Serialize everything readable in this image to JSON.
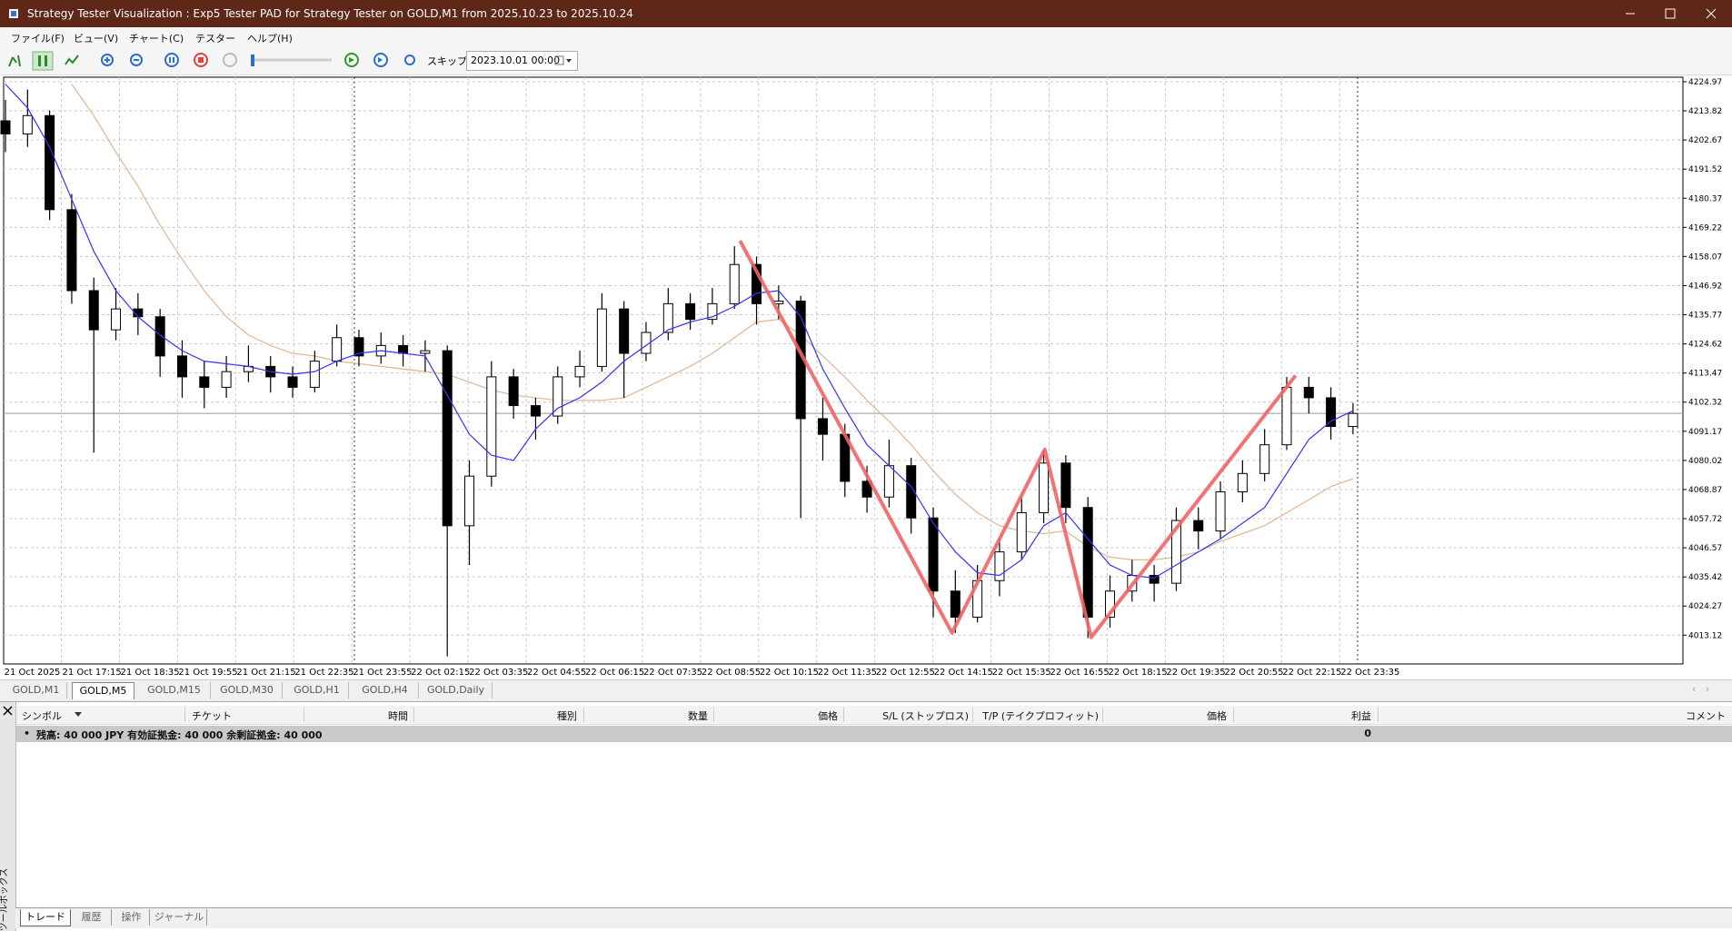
{
  "window_title": "Strategy Tester Visualization : Exp5 Tester PAD for Strategy Tester on GOLD,M1 from 2025.10.23 to 2025.10.24",
  "menu": [
    "ファイル(F)",
    "ビュー(V)",
    "チャート(C)",
    "テスター",
    "ヘルプ(H)"
  ],
  "toolbar": {
    "skip_label": "スキップ",
    "date": "2023.10.01 00:00"
  },
  "chart": {
    "type": "candlestick",
    "ylim": [
      4002.1,
      4226.7
    ],
    "yticks": [
      4224.97,
      4213.82,
      4202.67,
      4191.52,
      4180.37,
      4169.22,
      4158.07,
      4146.92,
      4135.77,
      4124.62,
      4113.47,
      4102.32,
      4091.17,
      4080.02,
      4068.87,
      4057.72,
      4046.57,
      4035.42,
      4024.27,
      4013.12
    ],
    "x_labels": [
      "21 Oct 2025",
      "21 Oct 17:15",
      "21 Oct 18:35",
      "21 Oct 19:55",
      "21 Oct 21:15",
      "21 Oct 22:35",
      "21 Oct 23:55",
      "22 Oct 02:15",
      "22 Oct 03:35",
      "22 Oct 04:55",
      "22 Oct 06:15",
      "22 Oct 07:35",
      "22 Oct 08:55",
      "22 Oct 10:15",
      "22 Oct 11:35",
      "22 Oct 12:55",
      "22 Oct 14:15",
      "22 Oct 15:35",
      "22 Oct 16:55",
      "22 Oct 18:15",
      "22 Oct 19:35",
      "22 Oct 20:55",
      "22 Oct 22:15",
      "22 Oct 23:35"
    ],
    "grid": true,
    "candles": [
      [
        4210,
        4218,
        4198,
        4205
      ],
      [
        4205,
        4222,
        4200,
        4212
      ],
      [
        4212,
        4214,
        4172,
        4176
      ],
      [
        4176,
        4182,
        4140,
        4145
      ],
      [
        4145,
        4150,
        4083,
        4130
      ],
      [
        4130,
        4146,
        4126,
        4138
      ],
      [
        4138,
        4144,
        4128,
        4135
      ],
      [
        4135,
        4138,
        4112,
        4120
      ],
      [
        4120,
        4126,
        4104,
        4112
      ],
      [
        4112,
        4118,
        4100,
        4108
      ],
      [
        4108,
        4120,
        4104,
        4114
      ],
      [
        4114,
        4124,
        4110,
        4116
      ],
      [
        4116,
        4120,
        4106,
        4112
      ],
      [
        4112,
        4116,
        4104,
        4108
      ],
      [
        4108,
        4122,
        4106,
        4118
      ],
      [
        4118,
        4132,
        4116,
        4127
      ],
      [
        4127,
        4130,
        4116,
        4120
      ],
      [
        4120,
        4129,
        4117,
        4124
      ],
      [
        4124,
        4128,
        4116,
        4121
      ],
      [
        4121,
        4126,
        4114,
        4122
      ],
      [
        4122,
        4124,
        4005,
        4055
      ],
      [
        4055,
        4080,
        4040,
        4074
      ],
      [
        4074,
        4118,
        4070,
        4112
      ],
      [
        4112,
        4115,
        4096,
        4101
      ],
      [
        4101,
        4104,
        4088,
        4097
      ],
      [
        4097,
        4116,
        4094,
        4112
      ],
      [
        4112,
        4122,
        4108,
        4116
      ],
      [
        4116,
        4144,
        4114,
        4138
      ],
      [
        4138,
        4141,
        4104,
        4121
      ],
      [
        4121,
        4133,
        4118,
        4129
      ],
      [
        4129,
        4146,
        4126,
        4140
      ],
      [
        4140,
        4144,
        4130,
        4134
      ],
      [
        4134,
        4146,
        4132,
        4140
      ],
      [
        4140,
        4162,
        4138,
        4155
      ],
      [
        4155,
        4158,
        4132,
        4140
      ],
      [
        4140,
        4147,
        4134,
        4141
      ],
      [
        4141,
        4143,
        4058,
        4096
      ],
      [
        4096,
        4104,
        4080,
        4090
      ],
      [
        4090,
        4094,
        4066,
        4072
      ],
      [
        4072,
        4078,
        4060,
        4066
      ],
      [
        4066,
        4088,
        4062,
        4078
      ],
      [
        4078,
        4081,
        4052,
        4058
      ],
      [
        4058,
        4062,
        4020,
        4030
      ],
      [
        4030,
        4038,
        4014,
        4020
      ],
      [
        4020,
        4040,
        4018,
        4034
      ],
      [
        4034,
        4050,
        4028,
        4045
      ],
      [
        4045,
        4066,
        4042,
        4060
      ],
      [
        4060,
        4084,
        4056,
        4079
      ],
      [
        4079,
        4082,
        4056,
        4062
      ],
      [
        4062,
        4066,
        4012,
        4020
      ],
      [
        4020,
        4036,
        4016,
        4030
      ],
      [
        4030,
        4042,
        4026,
        4036
      ],
      [
        4036,
        4040,
        4026,
        4033
      ],
      [
        4033,
        4062,
        4030,
        4057
      ],
      [
        4057,
        4062,
        4046,
        4053
      ],
      [
        4053,
        4072,
        4050,
        4068
      ],
      [
        4068,
        4080,
        4064,
        4075
      ],
      [
        4075,
        4092,
        4072,
        4086
      ],
      [
        4086,
        4112,
        4084,
        4108
      ],
      [
        4108,
        4112,
        4098,
        4104
      ],
      [
        4104,
        4108,
        4088,
        4093
      ],
      [
        4093,
        4102,
        4090,
        4098
      ]
    ],
    "ma_fast": {
      "color": "#3333ff",
      "values": [
        4224,
        4215,
        4200,
        4180,
        4160,
        4145,
        4135,
        4128,
        4122,
        4118,
        4117,
        4116,
        4114,
        4113,
        4114,
        4118,
        4121,
        4122,
        4121,
        4120,
        4105,
        4090,
        4082,
        4080,
        4092,
        4100,
        4104,
        4110,
        4118,
        4124,
        4130,
        4133,
        4135,
        4139,
        4144,
        4145,
        4135,
        4115,
        4100,
        4086,
        4078,
        4070,
        4056,
        4045,
        4037,
        4036,
        4042,
        4055,
        4060,
        4050,
        4040,
        4036,
        4035,
        4040,
        4045,
        4050,
        4056,
        4062,
        4075,
        4088,
        4095,
        4099
      ]
    },
    "ma_slow": {
      "color": "#e3b48f",
      "values": [
        null,
        null,
        null,
        4224,
        4212,
        4198,
        4185,
        4170,
        4157,
        4145,
        4135,
        4128,
        4124,
        4121,
        4120,
        4118,
        4117,
        4116,
        4115,
        4114,
        4113,
        4110,
        4107,
        4105,
        4104,
        4103,
        4103,
        4103,
        4104,
        4108,
        4112,
        4116,
        4121,
        4127,
        4133,
        4134,
        4128,
        4120,
        4112,
        4103,
        4095,
        4086,
        4076,
        4067,
        4060,
        4055,
        4053,
        4052,
        4053,
        4047,
        4043,
        4042,
        4042,
        4043,
        4045,
        4049,
        4052,
        4055,
        4060,
        4065,
        4070,
        4073
      ]
    },
    "zigzag": {
      "color": "#f06464",
      "x": [
        33.25,
        42.85,
        47.05,
        49.15,
        58.4
      ],
      "values": [
        4164.1,
        4014.0,
        4084.2,
        4012.3,
        4112.5
      ]
    }
  },
  "symbol_tabs": [
    "GOLD,M1",
    "GOLD,M5",
    "GOLD,M15",
    "GOLD,M30",
    "GOLD,H1",
    "GOLD,H4",
    "GOLD,Daily"
  ],
  "trade_table": {
    "columns": [
      "シンボル",
      "チケット",
      "時間",
      "種別",
      "数量",
      "価格",
      "S/L (ストップロス)",
      "T/P (テイクプロフィット)",
      "価格",
      "利益",
      "コメント"
    ],
    "balance": "残高: 40 000 JPY  有効証拠金: 40 000  余剰証拠金: 40 000",
    "profit": "0"
  },
  "toolbox_label": "ツールボックス",
  "bottom_tabs": [
    "トレード",
    "履歴",
    "操作",
    "ジャーナル"
  ]
}
